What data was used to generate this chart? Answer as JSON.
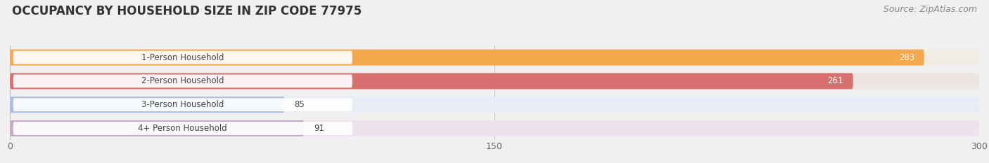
{
  "title": "OCCUPANCY BY HOUSEHOLD SIZE IN ZIP CODE 77975",
  "source": "Source: ZipAtlas.com",
  "categories": [
    "1-Person Household",
    "2-Person Household",
    "3-Person Household",
    "4+ Person Household"
  ],
  "values": [
    283,
    261,
    85,
    91
  ],
  "bar_colors": [
    "#F5A94E",
    "#D97070",
    "#AABFDF",
    "#C9A8C8"
  ],
  "bar_bg_colors": [
    "#F0EBE3",
    "#EDE3E3",
    "#E8EDF5",
    "#EDE3ED"
  ],
  "xlim": [
    0,
    300
  ],
  "xticks": [
    0,
    150,
    300
  ],
  "value_label_colors": [
    "#ffffff",
    "#ffffff",
    "#555555",
    "#555555"
  ],
  "title_fontsize": 12,
  "source_fontsize": 9,
  "tick_fontsize": 9,
  "bar_label_fontsize": 8.5,
  "value_label_fontsize": 8.5,
  "background_color": "#f0f0f0",
  "fig_width": 14.06,
  "fig_height": 2.33
}
